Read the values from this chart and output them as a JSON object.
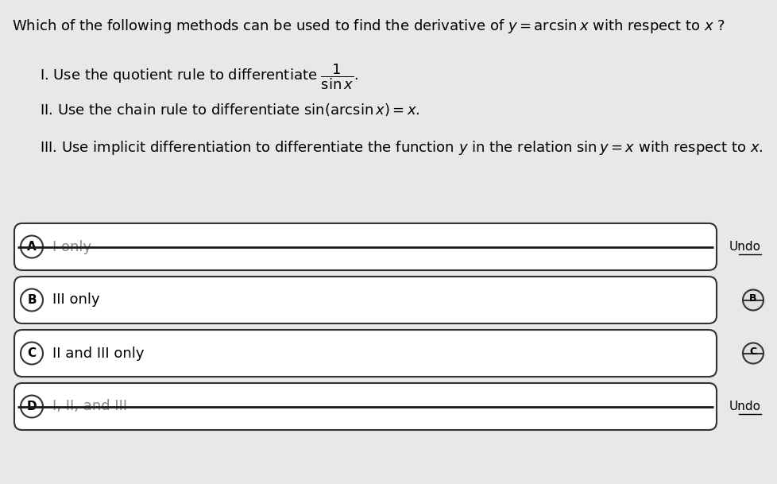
{
  "bg_color": "#e8e8e8",
  "question": "Which of the following methods can be used to find the derivative of $y = \\arcsin x$ with respect to $x$ ?",
  "items": [
    "I. Use the quotient rule to differentiate $\\dfrac{1}{\\sin x}$.",
    "II. Use the chain rule to differentiate $\\sin(\\arcsin x) = x$.",
    "III. Use implicit differentiation to differentiate the function $y$ in the relation $\\sin y = x$ with respect to $x$."
  ],
  "options": [
    {
      "label": "A",
      "text": "I only",
      "strikethrough": true,
      "right_text": "Undo",
      "has_circle_right": false,
      "circle_right_label": ""
    },
    {
      "label": "B",
      "text": "III only",
      "strikethrough": false,
      "right_text": "",
      "has_circle_right": true,
      "circle_right_label": "B"
    },
    {
      "label": "C",
      "text": "II and III only",
      "strikethrough": false,
      "right_text": "",
      "has_circle_right": true,
      "circle_right_label": "C"
    },
    {
      "label": "D",
      "text": "I, II, and III",
      "strikethrough": true,
      "right_text": "Undo",
      "has_circle_right": false,
      "circle_right_label": ""
    }
  ],
  "option_box_color": "#ffffff",
  "option_border_color": "#333333",
  "option_text_color": "#000000",
  "question_color": "#000000",
  "font_size_question": 13,
  "font_size_items": 13,
  "font_size_options": 13
}
